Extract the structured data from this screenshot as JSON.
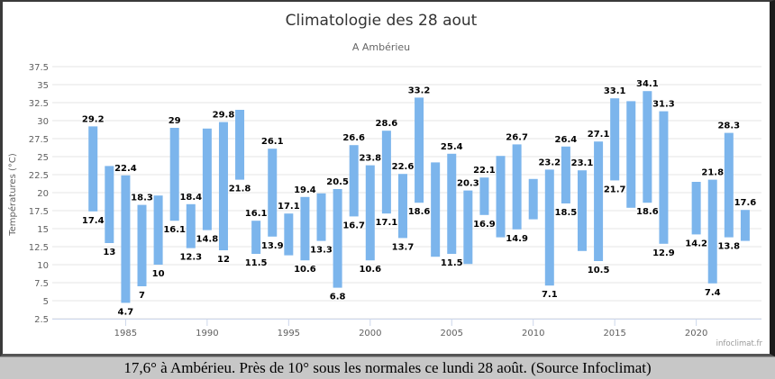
{
  "chart_data": {
    "type": "bar",
    "subtype": "columnrange",
    "title": "Climatologie des 28 aout",
    "subtitle": "A Ambérieu",
    "ylabel": "Températures (°C)",
    "ylim": [
      2.5,
      37.5
    ],
    "yticks": [
      "2.5",
      "5",
      "7.5",
      "10",
      "12.5",
      "15",
      "17.5",
      "20",
      "22.5",
      "25",
      "27.5",
      "30",
      "32.5",
      "35",
      "37.5"
    ],
    "xlim": [
      1980.5,
      2024
    ],
    "xticks": [
      "1985",
      "1990",
      "1995",
      "2000",
      "2005",
      "2010",
      "2015",
      "2020"
    ],
    "grid": true,
    "bar_color": "#7cb5ec",
    "series": [
      {
        "x": 1983,
        "low": 17.4,
        "high": 29.2,
        "low_label": "17.4",
        "high_label": "29.2"
      },
      {
        "x": 1984,
        "low": 13,
        "high": 23.7,
        "low_label": "13",
        "high_label": ""
      },
      {
        "x": 1985,
        "low": 4.7,
        "high": 22.4,
        "low_label": "4.7",
        "high_label": "22.4"
      },
      {
        "x": 1986,
        "low": 7,
        "high": 18.3,
        "low_label": "7",
        "high_label": "18.3"
      },
      {
        "x": 1987,
        "low": 10,
        "high": 19.6,
        "low_label": "10",
        "high_label": ""
      },
      {
        "x": 1988,
        "low": 16.1,
        "high": 29,
        "low_label": "16.1",
        "high_label": "29"
      },
      {
        "x": 1989,
        "low": 12.3,
        "high": 18.4,
        "low_label": "12.3",
        "high_label": "18.4"
      },
      {
        "x": 1990,
        "low": 14.8,
        "high": 28.9,
        "low_label": "14.8",
        "high_label": ""
      },
      {
        "x": 1991,
        "low": 12,
        "high": 29.8,
        "low_label": "12",
        "high_label": "29.8"
      },
      {
        "x": 1992,
        "low": 21.8,
        "high": 31.5,
        "low_label": "21.8",
        "high_label": ""
      },
      {
        "x": 1993,
        "low": 11.5,
        "high": 16.1,
        "low_label": "11.5",
        "high_label": "16.1"
      },
      {
        "x": 1994,
        "low": 13.9,
        "high": 26.1,
        "low_label": "13.9",
        "high_label": "26.1"
      },
      {
        "x": 1995,
        "low": 11.3,
        "high": 17.1,
        "low_label": "",
        "high_label": "17.1"
      },
      {
        "x": 1996,
        "low": 10.6,
        "high": 19.4,
        "low_label": "10.6",
        "high_label": "19.4"
      },
      {
        "x": 1997,
        "low": 13.3,
        "high": 19.9,
        "low_label": "13.3",
        "high_label": ""
      },
      {
        "x": 1998,
        "low": 6.8,
        "high": 20.5,
        "low_label": "6.8",
        "high_label": "20.5"
      },
      {
        "x": 1999,
        "low": 16.7,
        "high": 26.6,
        "low_label": "16.7",
        "high_label": "26.6"
      },
      {
        "x": 2000,
        "low": 10.6,
        "high": 23.8,
        "low_label": "10.6",
        "high_label": "23.8"
      },
      {
        "x": 2001,
        "low": 17.1,
        "high": 28.6,
        "low_label": "17.1",
        "high_label": "28.6"
      },
      {
        "x": 2002,
        "low": 13.7,
        "high": 22.6,
        "low_label": "13.7",
        "high_label": "22.6"
      },
      {
        "x": 2003,
        "low": 18.6,
        "high": 33.2,
        "low_label": "18.6",
        "high_label": "33.2"
      },
      {
        "x": 2004,
        "low": 11.1,
        "high": 24.2,
        "low_label": "",
        "high_label": ""
      },
      {
        "x": 2005,
        "low": 11.5,
        "high": 25.4,
        "low_label": "11.5",
        "high_label": "25.4"
      },
      {
        "x": 2006,
        "low": 10.1,
        "high": 20.3,
        "low_label": "",
        "high_label": "20.3"
      },
      {
        "x": 2007,
        "low": 16.9,
        "high": 22.1,
        "low_label": "16.9",
        "high_label": "22.1"
      },
      {
        "x": 2008,
        "low": 13.8,
        "high": 25.1,
        "low_label": "",
        "high_label": ""
      },
      {
        "x": 2009,
        "low": 14.9,
        "high": 26.7,
        "low_label": "14.9",
        "high_label": "26.7"
      },
      {
        "x": 2010,
        "low": 16.3,
        "high": 21.9,
        "low_label": "",
        "high_label": ""
      },
      {
        "x": 2011,
        "low": 7.1,
        "high": 23.2,
        "low_label": "7.1",
        "high_label": "23.2"
      },
      {
        "x": 2012,
        "low": 18.5,
        "high": 26.4,
        "low_label": "18.5",
        "high_label": "26.4"
      },
      {
        "x": 2013,
        "low": 11.9,
        "high": 23.1,
        "low_label": "",
        "high_label": "23.1"
      },
      {
        "x": 2014,
        "low": 10.5,
        "high": 27.1,
        "low_label": "10.5",
        "high_label": "27.1"
      },
      {
        "x": 2015,
        "low": 21.7,
        "high": 33.1,
        "low_label": "21.7",
        "high_label": "33.1"
      },
      {
        "x": 2016,
        "low": 17.9,
        "high": 32.7,
        "low_label": "",
        "high_label": ""
      },
      {
        "x": 2017,
        "low": 18.6,
        "high": 34.1,
        "low_label": "18.6",
        "high_label": "34.1"
      },
      {
        "x": 2018,
        "low": 12.9,
        "high": 31.3,
        "low_label": "12.9",
        "high_label": "31.3"
      },
      {
        "x": 2020,
        "low": 14.2,
        "high": 21.5,
        "low_label": "14.2",
        "high_label": ""
      },
      {
        "x": 2021,
        "low": 7.4,
        "high": 21.8,
        "low_label": "7.4",
        "high_label": "21.8"
      },
      {
        "x": 2022,
        "low": 13.8,
        "high": 28.3,
        "low_label": "13.8",
        "high_label": "28.3"
      },
      {
        "x": 2023,
        "low": 13.3,
        "high": 17.6,
        "low_label": "",
        "high_label": "17.6"
      }
    ]
  },
  "credit": "infoclimat.fr",
  "caption": "17,6° à Ambérieu. Près de 10° sous les normales ce lundi 28 août. (Source Infoclimat)"
}
